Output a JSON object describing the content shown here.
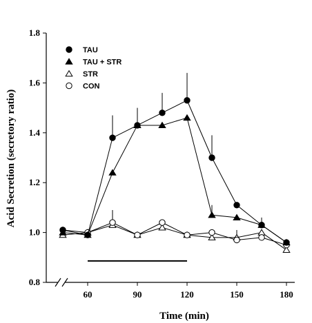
{
  "chart_data": {
    "type": "line",
    "title": "",
    "xlabel": "Time (min)",
    "ylabel": "Acid Secretion (secretory ratio)",
    "xlim": [
      35,
      185
    ],
    "ylim": [
      0.8,
      1.8
    ],
    "y_axis_break": true,
    "xticks": [
      60,
      90,
      120,
      150,
      180
    ],
    "yticks": [
      0.8,
      1.0,
      1.2,
      1.4,
      1.6,
      1.8
    ],
    "ytick_labels": [
      "0.8",
      "1.0",
      "1.2",
      "1.4",
      "1.6",
      "1.8"
    ],
    "grid": false,
    "legend_position": "top-left",
    "treatment_bar": {
      "x_start": 60,
      "x_end": 120,
      "y": 0.886
    },
    "x": [
      45,
      60,
      75,
      90,
      105,
      120,
      135,
      150,
      165,
      180
    ],
    "series": [
      {
        "name": "TAU",
        "marker": "filled-circle",
        "values": [
          1.01,
          0.99,
          1.38,
          1.43,
          1.48,
          1.53,
          1.3,
          1.11,
          1.03,
          0.96
        ],
        "errors": [
          0.0,
          0.0,
          0.09,
          0.07,
          0.08,
          0.11,
          0.09,
          0.0,
          0.03,
          0.0
        ]
      },
      {
        "name": "TAU + STR",
        "marker": "filled-triangle",
        "values": [
          1.0,
          0.99,
          1.24,
          1.43,
          1.43,
          1.46,
          1.07,
          1.06,
          1.03,
          0.96
        ],
        "errors": [
          0.0,
          0.0,
          0.0,
          0.04,
          0.0,
          0.0,
          0.04,
          0.0,
          0.0,
          0.0
        ]
      },
      {
        "name": "STR",
        "marker": "open-triangle",
        "values": [
          0.99,
          1.0,
          1.03,
          0.99,
          1.02,
          0.99,
          0.98,
          0.98,
          1.0,
          0.93
        ],
        "errors": [
          0.0,
          0.0,
          0.0,
          0.0,
          0.0,
          0.0,
          0.0,
          0.03,
          0.0,
          0.0
        ]
      },
      {
        "name": "CON",
        "marker": "open-circle",
        "values": [
          1.01,
          1.0,
          1.04,
          0.99,
          1.04,
          0.99,
          1.0,
          0.97,
          0.98,
          0.95
        ],
        "errors": [
          0.0,
          0.0,
          0.05,
          0.0,
          0.0,
          0.0,
          0.0,
          0.0,
          0.0,
          0.0
        ]
      }
    ]
  }
}
